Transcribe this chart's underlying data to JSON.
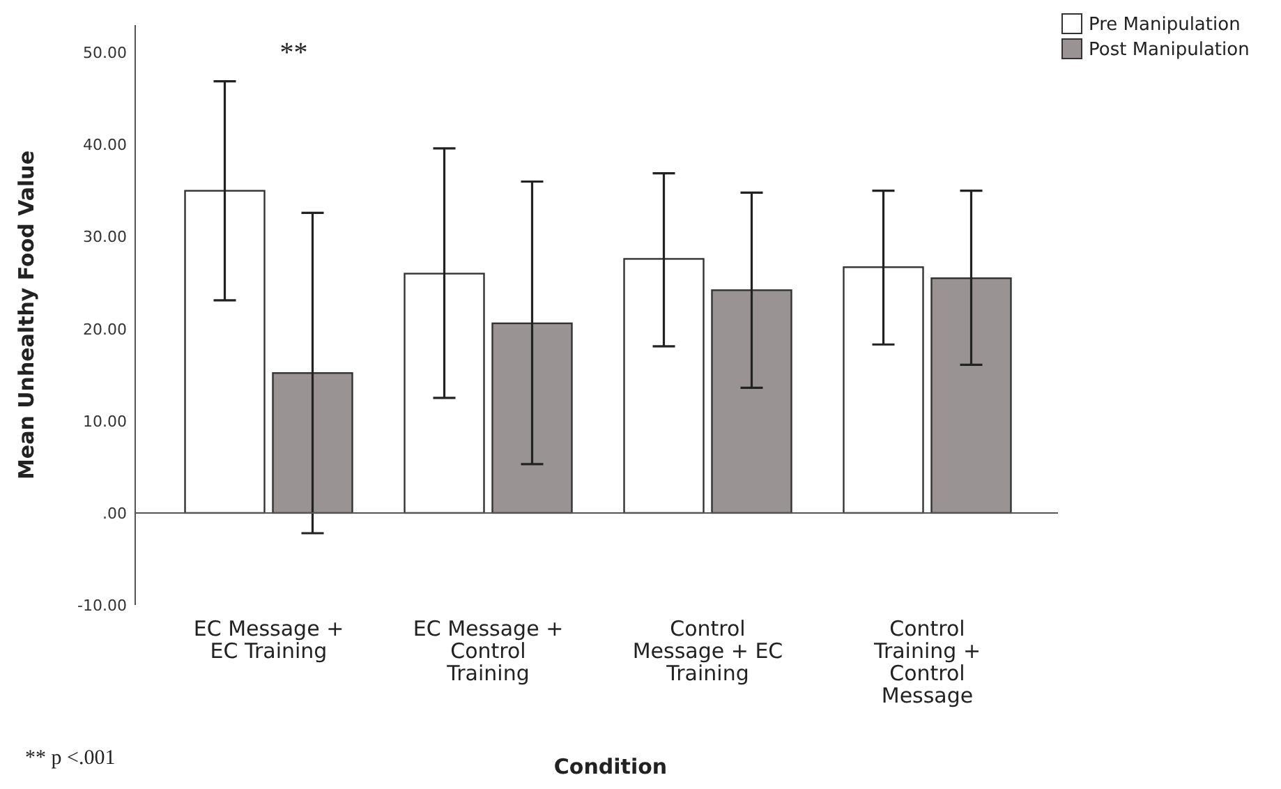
{
  "chart_data": {
    "type": "bar",
    "xlabel": "Condition",
    "ylabel": "Mean Unhealthy Food Value",
    "categories": [
      "EC Message + EC Training",
      "EC Message + Control Training",
      "Control Message + EC Training",
      "Control Training + Control Message"
    ],
    "series": [
      {
        "name": "Pre Manipulation",
        "color": "#ffffff",
        "values": [
          35.0,
          26.0,
          27.6,
          26.7
        ],
        "errors": [
          [
            23.1,
            46.9
          ],
          [
            12.5,
            39.6
          ],
          [
            18.1,
            36.9
          ],
          [
            18.3,
            35.0
          ]
        ]
      },
      {
        "name": "Post Manipulation",
        "color": "#9a9393",
        "values": [
          15.2,
          20.6,
          24.2,
          25.5
        ],
        "errors": [
          [
            -2.2,
            32.6
          ],
          [
            5.3,
            36.0
          ],
          [
            13.6,
            34.8
          ],
          [
            16.1,
            35.0
          ]
        ]
      }
    ],
    "ylim": [
      -10,
      53
    ],
    "yticks": [
      {
        "value": -10,
        "label": "-10.00"
      },
      {
        "value": 0,
        "label": ".00"
      },
      {
        "value": 10,
        "label": "10.00"
      },
      {
        "value": 20,
        "label": "20.00"
      },
      {
        "value": 30,
        "label": "30.00"
      },
      {
        "value": 40,
        "label": "40.00"
      },
      {
        "value": 50,
        "label": "50.00"
      }
    ],
    "legend": "top right",
    "annotations": [
      "**",
      "** p <.001"
    ]
  }
}
